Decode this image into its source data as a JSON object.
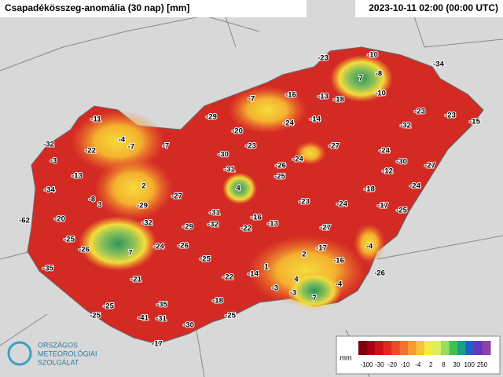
{
  "header": {
    "title": "Csapadékösszeg-anomália (30 nap) [mm]",
    "timestamp": "2023-10-11 02:00 (00:00 UTC)"
  },
  "stations": [
    -23,
    -10,
    -34,
    7,
    -8,
    -16,
    -13,
    -18,
    -10,
    -7,
    -23,
    -29,
    -24,
    -14,
    -32,
    -23,
    -15,
    -11,
    -20,
    -4,
    -7,
    -7,
    -32,
    -22,
    -30,
    -23,
    -27,
    -24,
    -3,
    -13,
    -31,
    -24,
    -26,
    -30,
    -27,
    -12,
    -25,
    2,
    4,
    -18,
    -24,
    -34,
    -27,
    -8,
    3,
    -29,
    -23,
    -24,
    -17,
    -25,
    -20,
    -31,
    -32,
    -16,
    -13,
    -62,
    -29,
    -32,
    -22,
    -27,
    -4,
    -25,
    -26,
    7,
    -24,
    -26,
    -17,
    2,
    -35,
    -25,
    -16,
    1,
    -14,
    -22,
    -26,
    -21,
    4,
    -4,
    -3,
    -3,
    7,
    -18,
    -35,
    -25,
    -25,
    -41,
    -31,
    -25,
    -30,
    -17
  ],
  "legend": {
    "unit": "mm",
    "labels": [
      -100,
      -30,
      -20,
      -10,
      -4,
      2,
      8,
      30,
      100,
      250
    ],
    "colors": [
      "#7a0010",
      "#a80010",
      "#cc1018",
      "#e02a20",
      "#ec4a28",
      "#f27030",
      "#f89a30",
      "#fac238",
      "#f8ec40",
      "#d8f060",
      "#98dc60",
      "#40c050",
      "#18a080",
      "#2060c8",
      "#6038c0",
      "#8c40a8"
    ]
  },
  "logo": {
    "line1": "ORSZÁGOS",
    "line2": "METEOROLÓGIAI",
    "line3": "SZOLGÁLAT"
  }
}
